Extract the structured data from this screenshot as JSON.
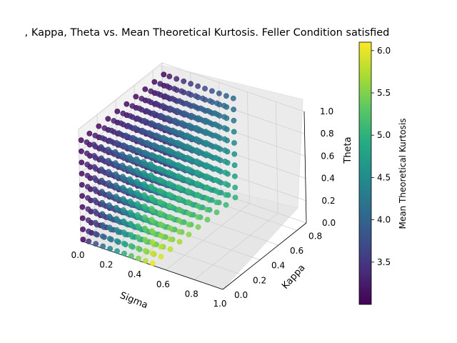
{
  "chart_data": {
    "type": "scatter",
    "title": ", Kappa, Theta vs. Mean Theoretical Kurtosis. Feller Condition satisfied",
    "xlabel": "Sigma",
    "ylabel": "Kappa",
    "zlabel": "Theta",
    "colorbar_label": "Mean Theoretical Kurtosis",
    "colormap": "viridis",
    "color_range": [
      3.0,
      6.1
    ],
    "xlim": [
      0.0,
      1.0
    ],
    "ylim": [
      0.0,
      0.9
    ],
    "zlim": [
      0.0,
      1.0
    ],
    "x_ticks": [
      "0.0",
      "0.2",
      "0.4",
      "0.6",
      "0.8",
      "1.0"
    ],
    "y_ticks": [
      "0.0",
      "0.2",
      "0.4",
      "0.6",
      "0.8"
    ],
    "z_ticks": [
      "0.0",
      "0.2",
      "0.4",
      "0.6",
      "0.8",
      "1.0"
    ],
    "colorbar_ticks": [
      "3.5",
      "4.0",
      "4.5",
      "5.0",
      "5.5",
      "6.0"
    ],
    "grid": true,
    "colorbar_position": "right",
    "grid_points": {
      "sigma": [
        0.01,
        0.05,
        0.1,
        0.15,
        0.2,
        0.25,
        0.3,
        0.35,
        0.4,
        0.45,
        0.5
      ],
      "kappa": [
        0.01,
        0.1,
        0.2,
        0.3,
        0.4,
        0.5,
        0.6,
        0.7,
        0.8,
        0.9
      ],
      "theta": [
        0.01,
        0.1,
        0.2,
        0.3,
        0.4,
        0.5,
        0.6,
        0.7,
        0.8,
        0.9
      ]
    }
  }
}
